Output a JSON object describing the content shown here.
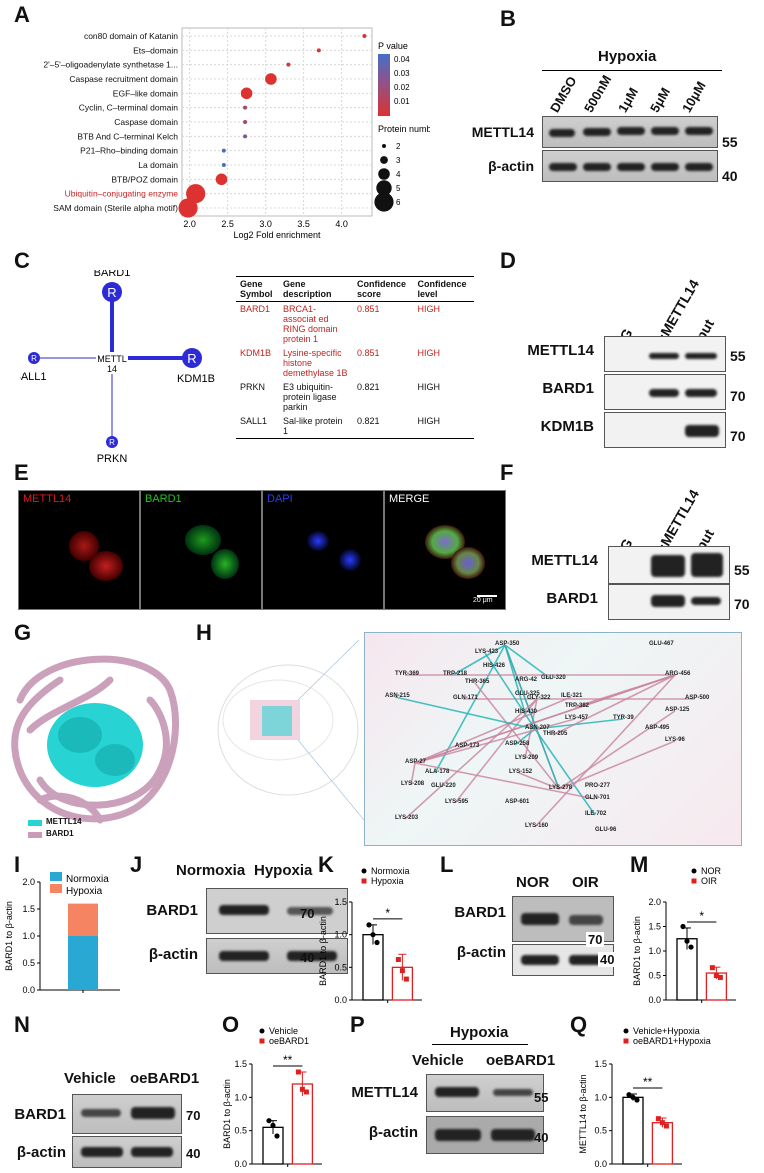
{
  "panels": {
    "A": {
      "label": "A",
      "x_axis_label": "Log2 Fold enrichment",
      "x_ticks": [
        "2.0",
        "2.5",
        "3.0",
        "3.5",
        "4.0"
      ],
      "legend_pvalue_title": "P value",
      "legend_pvalue_ticks": [
        "0.04",
        "0.03",
        "0.02",
        "0.01"
      ],
      "legend_protein_title": "Protein number",
      "legend_protein_items": [
        "2",
        "3",
        "4",
        "5",
        "6"
      ]
    },
    "B": {
      "label": "B",
      "header": "Hypoxia",
      "columns": [
        "DMSO",
        "500nM",
        "1μM",
        "5μM",
        "10μM"
      ],
      "rows": [
        "METTL14",
        "β-actin"
      ],
      "mw": [
        "55",
        "40"
      ]
    },
    "C": {
      "label": "C",
      "center": "METTL\n14",
      "center_a": "METTL",
      "center_b": "14",
      "nodes": [
        "BARD1",
        "SALL1",
        "KDM1B",
        "PRKN"
      ],
      "node_letter": "R",
      "table_headers": [
        "Gene Symbol",
        "Gene description",
        "Confidence score",
        "Confidence level"
      ],
      "table_headers_split": [
        [
          "Gene",
          "Symbol"
        ],
        [
          "Gene",
          "description"
        ],
        [
          "Confidence",
          "score"
        ],
        [
          "Confidence",
          "level"
        ]
      ],
      "table_rows": [
        {
          "symbol": "BARD1",
          "description": "BRCA1-associat ed RING domain protein 1",
          "score": "0.851",
          "level": "HIGH",
          "highlight": true
        },
        {
          "symbol": "KDM1B",
          "description": "Lysine-specific histone demethylase 1B",
          "score": "0.851",
          "level": "HIGH",
          "highlight": true
        },
        {
          "symbol": "PRKN",
          "description": "E3 ubiquitin-protein ligase parkin",
          "score": "0.821",
          "level": "HIGH",
          "highlight": false
        },
        {
          "symbol": "SALL1",
          "description": "Sal-like protein 1",
          "score": "0.821",
          "level": "HIGH",
          "highlight": false
        }
      ]
    },
    "D": {
      "label": "D",
      "columns": [
        "IgG",
        "IP:METTL14",
        "Input"
      ],
      "rows": [
        "METTL14",
        "BARD1",
        "KDM1B"
      ],
      "mw": [
        "55",
        "70",
        "70"
      ]
    },
    "E": {
      "label": "E",
      "channels": [
        "METTL14",
        "BARD1",
        "DAPI",
        "MERGE"
      ],
      "channel_colors": [
        "#e01919",
        "#22c422",
        "#2a3bff",
        "#ffffff"
      ],
      "scale_bar": "20 μm"
    },
    "F": {
      "label": "F",
      "columns": [
        "IgG",
        "IP:METTL14",
        "Input"
      ],
      "rows": [
        "METTL14",
        "BARD1"
      ],
      "mw": [
        "55",
        "70"
      ]
    },
    "G": {
      "label": "G",
      "legend": [
        "METTL14",
        "BARD1"
      ],
      "legend_colors": [
        "#27d3d3",
        "#c99bb8"
      ]
    },
    "H": {
      "label": "H",
      "residues": [
        "ASP-350",
        "GLU-467",
        "LYS-423",
        "HIS-426",
        "TYR-369",
        "TRP-218",
        "THR-365",
        "ARG-456",
        "ASN-215",
        "GLN-171",
        "ARG-42",
        "GLU-320",
        "GLU-325",
        "ILE-321",
        "GLY-322",
        "ASP-500",
        "TRP-382",
        "HIS-430",
        "ASP-125",
        "LYS-457",
        "TYR-39",
        "ASN-207",
        "THR-205",
        "ASP-495",
        "LYS-96",
        "ASP-173",
        "ASP-258",
        "LYS-209",
        "ASP-27",
        "ALA-178",
        "LYS-152",
        "LYS-208",
        "GLU-220",
        "LYS-595",
        "ASP-601",
        "LYS-278",
        "PRO-277",
        "GLN-701",
        "ILE-702",
        "LYS-203",
        "LYS-160",
        "GLU-96"
      ]
    },
    "I": {
      "label": "I",
      "ylabel": "BARD1 to β-actin",
      "legend": [
        "Normoxia",
        "Hypoxia"
      ]
    },
    "J": {
      "label": "J",
      "columns": [
        "Normoxia",
        "Hypoxia"
      ],
      "rows": [
        "BARD1",
        "β-actin"
      ],
      "mw": [
        "70",
        "40"
      ]
    },
    "K": {
      "label": "K",
      "ylabel": "BARD1 to β-actin",
      "legend": [
        "Normoxia",
        "Hypoxia"
      ],
      "sig": "*"
    },
    "L": {
      "label": "L",
      "columns": [
        "NOR",
        "OIR"
      ],
      "rows": [
        "BARD1",
        "β-actin"
      ],
      "mw": [
        "70",
        "40"
      ]
    },
    "M": {
      "label": "M",
      "ylabel": "BARD1 to β-actin",
      "legend": [
        "NOR",
        "OIR"
      ],
      "sig": "*"
    },
    "N": {
      "label": "N",
      "columns": [
        "Vehicle",
        "oeBARD1"
      ],
      "rows": [
        "BARD1",
        "β-actin"
      ],
      "mw": [
        "70",
        "40"
      ]
    },
    "O": {
      "label": "O",
      "ylabel": "BARD1 to β-actin",
      "legend": [
        "Vehicle",
        "oeBARD1"
      ],
      "sig": "**"
    },
    "P": {
      "label": "P",
      "header": "Hypoxia",
      "columns": [
        "Vehicle",
        "oeBARD1"
      ],
      "rows": [
        "METTL14",
        "β-actin"
      ],
      "mw": [
        "55",
        "40"
      ]
    },
    "Q": {
      "label": "Q",
      "ylabel": "METTL14 to β-actin",
      "legend": [
        "Vehicle+Hypoxia",
        "oeBARD1+Hypoxia"
      ],
      "sig": "**"
    }
  },
  "chart_data": [
    {
      "panel": "A",
      "type": "scatter",
      "xlabel": "Log2 Fold enrichment",
      "xlim": [
        1.9,
        4.4
      ],
      "categories": [
        "con80 domain of Katanin",
        "Ets–domain",
        "2'–5'–oligoadenylate synthetase 1...",
        "Caspase recruitment domain",
        "EGF–like domain",
        "Cyclin, C–terminal domain",
        "Caspase domain",
        "BTB And C–terminal Kelch",
        "P21–Rho–binding domain",
        "La domain",
        "BTB/POZ domain",
        "Ubiquitin–conjugating enzyme",
        "SAM domain (Sterile alpha motif)"
      ],
      "x": [
        4.3,
        3.7,
        3.3,
        3.07,
        2.75,
        2.73,
        2.73,
        2.73,
        2.45,
        2.45,
        2.42,
        2.08,
        1.98
      ],
      "protein_number": [
        2,
        2,
        2,
        4,
        4,
        2,
        2,
        2,
        2,
        2,
        4,
        6,
        6
      ],
      "pvalue": [
        0.005,
        0.005,
        0.01,
        0.005,
        0.005,
        0.02,
        0.02,
        0.03,
        0.045,
        0.045,
        0.005,
        0.005,
        0.005
      ],
      "highlight_category": "Ubiquitin–conjugating enzyme"
    },
    {
      "panel": "I",
      "type": "bar",
      "ylabel": "BARD1 to β-actin",
      "ylim": [
        0,
        2.0
      ],
      "yticks": [
        "0.0",
        "0.5",
        "1.0",
        "1.5",
        "2.0"
      ],
      "series": [
        {
          "name": "Normoxia",
          "values": [
            1.0
          ],
          "color": "#2aa8d4"
        },
        {
          "name": "Hypoxia",
          "values": [
            0.6
          ],
          "color": "#f48462"
        }
      ]
    },
    {
      "panel": "K",
      "type": "bar",
      "ylabel": "BARD1 to β-actin",
      "ylim": [
        0,
        1.5
      ],
      "yticks": [
        "0.0",
        "0.5",
        "1.0",
        "1.5"
      ],
      "categories": [
        "Normoxia",
        "Hypoxia"
      ],
      "values": [
        1.0,
        0.5
      ],
      "errors": [
        0.15,
        0.2
      ],
      "points": [
        [
          1.15,
          1.0,
          0.88
        ],
        [
          0.62,
          0.45,
          0.32
        ]
      ],
      "colors": [
        "#000000",
        "#e02020"
      ]
    },
    {
      "panel": "M",
      "type": "bar",
      "ylabel": "BARD1 to β-actin",
      "ylim": [
        0,
        2.0
      ],
      "yticks": [
        "0.0",
        "0.5",
        "1.0",
        "1.5",
        "2.0"
      ],
      "categories": [
        "NOR",
        "OIR"
      ],
      "values": [
        1.25,
        0.55
      ],
      "errors": [
        0.22,
        0.12
      ],
      "points": [
        [
          1.5,
          1.2,
          1.08
        ],
        [
          0.66,
          0.5,
          0.46
        ]
      ],
      "colors": [
        "#000000",
        "#e02020"
      ]
    },
    {
      "panel": "O",
      "type": "bar",
      "ylabel": "BARD1 to β-actin",
      "ylim": [
        0,
        1.5
      ],
      "yticks": [
        "0.0",
        "0.5",
        "1.0",
        "1.5"
      ],
      "categories": [
        "Vehicle",
        "oeBARD1"
      ],
      "values": [
        0.55,
        1.2
      ],
      "errors": [
        0.1,
        0.18
      ],
      "points": [
        [
          0.65,
          0.58,
          0.42
        ],
        [
          1.38,
          1.12,
          1.08
        ]
      ],
      "colors": [
        "#000000",
        "#e02020"
      ]
    },
    {
      "panel": "Q",
      "type": "bar",
      "ylabel": "METTL14 to β-actin",
      "ylim": [
        0,
        1.5
      ],
      "yticks": [
        "0.0",
        "0.5",
        "1.0",
        "1.5"
      ],
      "categories": [
        "Vehicle+Hypoxia",
        "oeBARD1+Hypoxia"
      ],
      "values": [
        1.0,
        0.62
      ],
      "errors": [
        0.05,
        0.07
      ],
      "points": [
        [
          1.04,
          1.0,
          0.96
        ],
        [
          0.68,
          0.62,
          0.57
        ]
      ],
      "colors": [
        "#000000",
        "#e02020"
      ]
    }
  ]
}
